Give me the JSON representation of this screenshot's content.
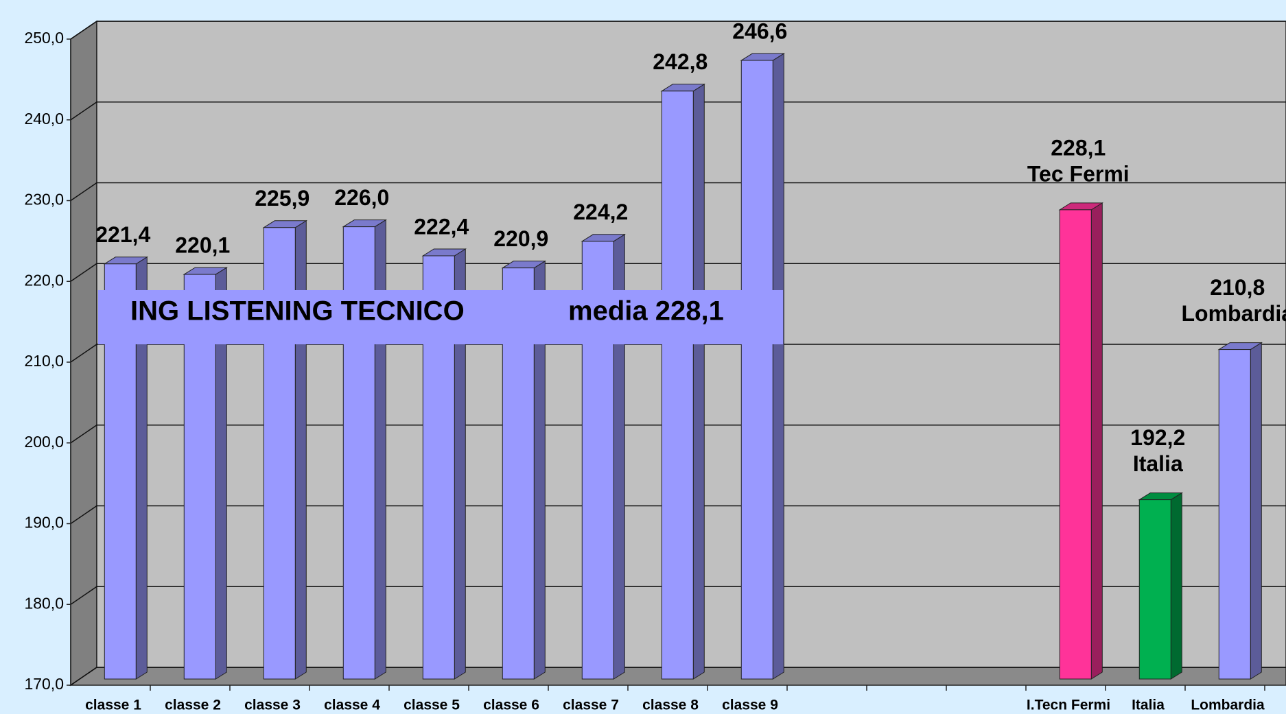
{
  "chart_data": {
    "type": "bar3d",
    "categories": [
      "classe 1",
      "classe 2",
      "classe 3",
      "classe 4",
      "classe 5",
      "classe 6",
      "classe 7",
      "classe 8",
      "classe 9",
      null,
      null,
      null,
      "I.Tecn Fermi",
      "Italia",
      "Lombardia"
    ],
    "values": [
      221.4,
      220.1,
      225.9,
      226.0,
      222.4,
      220.9,
      224.2,
      242.8,
      246.6,
      null,
      null,
      null,
      228.1,
      192.2,
      210.8
    ],
    "value_labels": [
      "221,4",
      "220,1",
      "225,9",
      "226,0",
      "222,4",
      "220,9",
      "224,2",
      "242,8",
      "246,6",
      null,
      null,
      null,
      "228,1",
      "192,2",
      "210,8"
    ],
    "value_annotations": [
      null,
      null,
      null,
      null,
      null,
      null,
      null,
      null,
      null,
      null,
      null,
      null,
      "Tec Fermi",
      "Italia",
      "Lombardia"
    ],
    "colors": [
      "#9999ff",
      "#9999ff",
      "#9999ff",
      "#9999ff",
      "#9999ff",
      "#9999ff",
      "#9999ff",
      "#9999ff",
      "#9999ff",
      null,
      null,
      null,
      "#ff3399",
      "#00b050",
      "#9999ff"
    ],
    "annotations": [
      "ING LISTENING TECNICO",
      "media 228,1"
    ],
    "ylim": [
      170,
      250
    ],
    "yticks": [
      {
        "value": 170,
        "label": "170,0"
      },
      {
        "value": 180,
        "label": "180,0"
      },
      {
        "value": 190,
        "label": "190,0"
      },
      {
        "value": 200,
        "label": "200,0"
      },
      {
        "value": 210,
        "label": "210,0"
      },
      {
        "value": 220,
        "label": "220,0"
      },
      {
        "value": 230,
        "label": "230,0"
      },
      {
        "value": 240,
        "label": "240,0"
      },
      {
        "value": 250,
        "label": "250,0"
      }
    ],
    "grid": true
  }
}
